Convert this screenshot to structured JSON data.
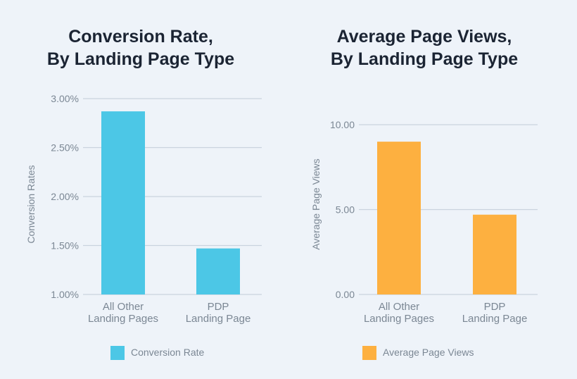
{
  "chart_data": [
    {
      "type": "bar",
      "title_lines": [
        "Conversion Rate,",
        "By Landing Page Type"
      ],
      "categories": [
        [
          "All Other",
          "Landing Pages"
        ],
        [
          "PDP",
          "Landing Page"
        ]
      ],
      "values": [
        2.87,
        1.47
      ],
      "value_unit": "%",
      "ylabel": "Conversion Rates",
      "ylim": [
        1.0,
        3.0
      ],
      "yticks": [
        1.0,
        1.5,
        2.0,
        2.5,
        3.0
      ],
      "ytick_labels": [
        "1.00%",
        "1.50%",
        "2.00%",
        "2.50%",
        "3.00%"
      ],
      "legend": [
        "Conversion Rate"
      ],
      "legend_position": "bottom",
      "grid": true,
      "color": "#4cc7e6"
    },
    {
      "type": "bar",
      "title_lines": [
        "Average Page Views,",
        "By Landing Page Type"
      ],
      "categories": [
        [
          "All Other",
          "Landing Pages"
        ],
        [
          "PDP",
          "Landing Page"
        ]
      ],
      "values": [
        9.0,
        4.7
      ],
      "ylabel": "Average Page Views",
      "ylim": [
        0,
        10
      ],
      "yticks": [
        0,
        5,
        10
      ],
      "ytick_labels": [
        "0.00",
        "5.00",
        "10.00"
      ],
      "legend": [
        "Average Page Views"
      ],
      "legend_position": "bottom",
      "grid": true,
      "color": "#fdb040"
    }
  ]
}
